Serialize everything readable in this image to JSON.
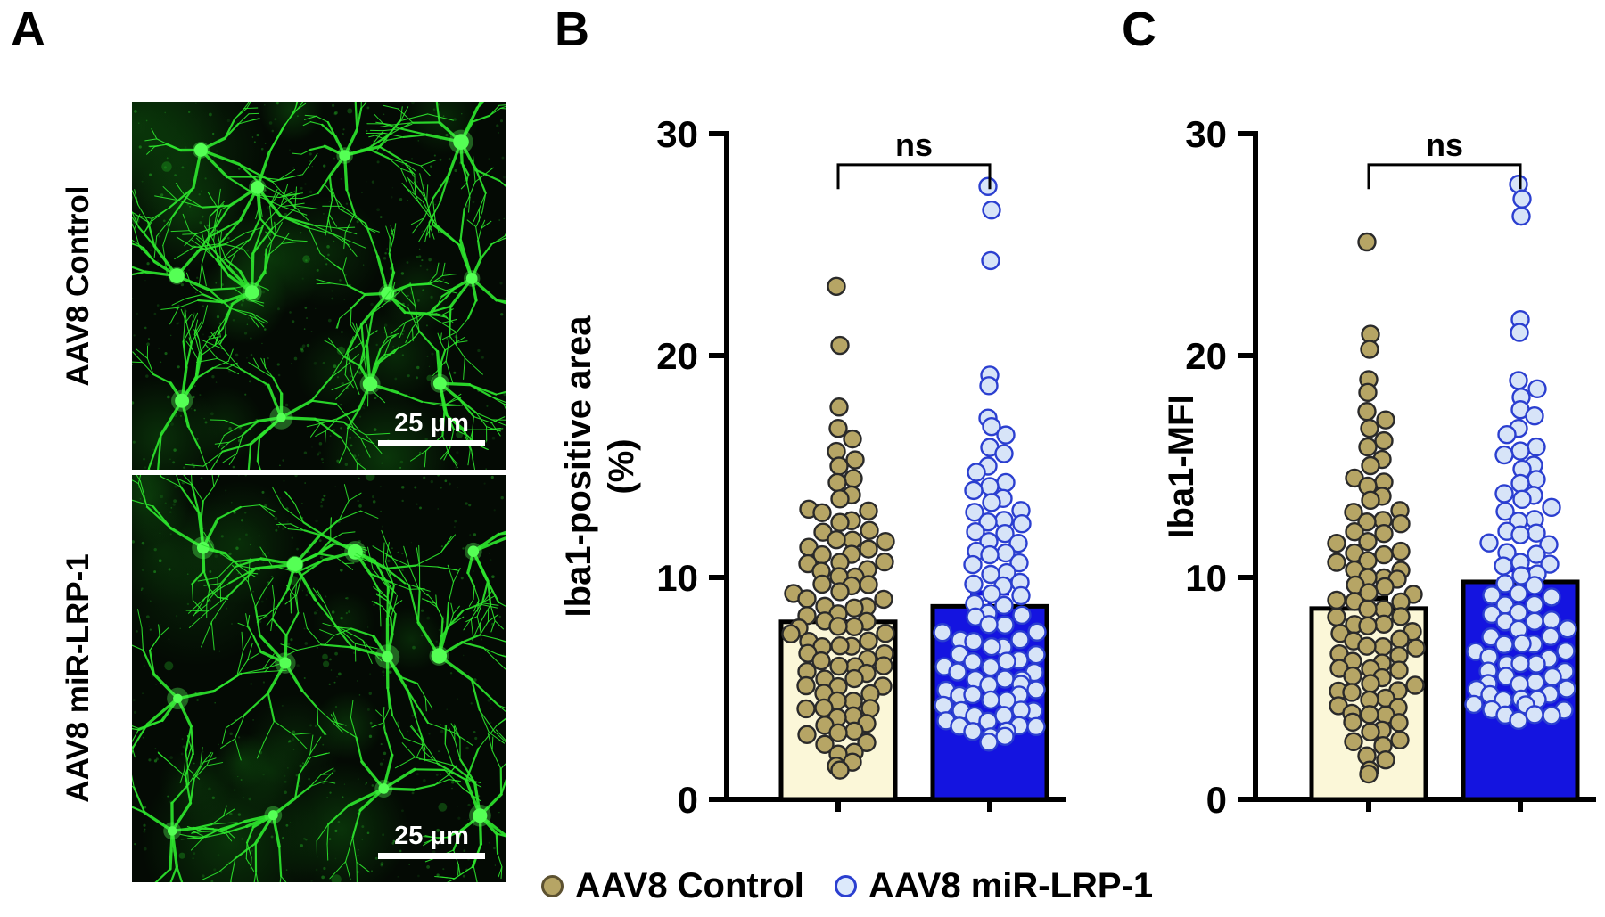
{
  "panels": {
    "a": {
      "label": "A",
      "images": [
        {
          "side_label": "AAV8 Control",
          "scale_bar_label": "25 μm"
        },
        {
          "side_label": "AAV8 miR-LRP-1",
          "scale_bar_label": "25 μm"
        }
      ],
      "micro_colors": {
        "bg": "#040a04",
        "cell": "#2de42d",
        "soma": "#55ff55",
        "haze": "#0e5a0e"
      }
    },
    "b": {
      "label": "B"
    },
    "c": {
      "label": "C"
    }
  },
  "legend": {
    "items": [
      {
        "label": "AAV8 Control",
        "marker": "filled-circle",
        "fill": "#b6a565",
        "stroke": "#5c5130"
      },
      {
        "label": "AAV8 miR-LRP-1",
        "marker": "open-circle",
        "fill": "#dce9fb",
        "stroke": "#2b3fd0"
      }
    ]
  },
  "chart_data": [
    {
      "id": "B",
      "type": "bar-scatter",
      "categories": [
        "AAV8 Control",
        "AAV8 miR-LRP-1"
      ],
      "ylabel_lines": [
        "Iba1-positive area",
        "(%)"
      ],
      "ylim": [
        0,
        30
      ],
      "yticks": [
        0,
        10,
        20,
        30
      ],
      "significance": "ns",
      "bracket_y": 28.6,
      "groups": [
        {
          "name": "AAV8 Control",
          "bar_mean": 8.0,
          "sem": 0.45,
          "bar_fill": "#fbf7d8",
          "err_color": "#000000",
          "dot_fill": "#b6a565",
          "dot_stroke": "#2a2a2a",
          "values": [
            23,
            20.5,
            17.6,
            16.8,
            16.2,
            15.8,
            15.3,
            14.9,
            14.5,
            14.2,
            13.8,
            13.5,
            13.2,
            13.0,
            12.8,
            12.6,
            12.4,
            12.2,
            12.0,
            11.8,
            11.7,
            11.5,
            11.4,
            11.2,
            11.1,
            11.0,
            10.8,
            10.7,
            10.5,
            10.4,
            10.2,
            10.1,
            10.0,
            9.8,
            9.7,
            9.5,
            9.4,
            9.2,
            9.1,
            9.0,
            8.8,
            8.7,
            8.5,
            8.4,
            8.2,
            8.1,
            8.0,
            7.9,
            7.8,
            7.6,
            7.5,
            7.4,
            7.2,
            7.1,
            7.0,
            6.9,
            6.8,
            6.6,
            6.5,
            6.4,
            6.2,
            6.1,
            6.0,
            5.9,
            5.8,
            5.6,
            5.5,
            5.4,
            5.2,
            5.1,
            5.0,
            4.8,
            4.7,
            4.5,
            4.4,
            4.2,
            4.1,
            4.0,
            3.8,
            3.6,
            3.5,
            3.3,
            3.2,
            3.0,
            2.8,
            2.6,
            2.4,
            2.2,
            2.0,
            1.8,
            1.5,
            1.2
          ]
        },
        {
          "name": "AAV8 miR-LRP-1",
          "bar_mean": 8.7,
          "sem": 0.6,
          "bar_fill": "#1414e0",
          "err_color": "#1414e0",
          "dot_fill": "#d7e4f8",
          "dot_stroke": "#2b3fd0",
          "values": [
            27.5,
            26.6,
            24.2,
            19.2,
            18.6,
            17.3,
            16.8,
            16.3,
            15.9,
            15.5,
            15.1,
            14.7,
            14.4,
            14.1,
            13.8,
            13.6,
            13.3,
            13.1,
            12.9,
            12.7,
            12.5,
            12.3,
            12.1,
            11.9,
            11.7,
            11.5,
            11.3,
            11.1,
            10.9,
            10.7,
            10.5,
            10.3,
            10.1,
            9.9,
            9.7,
            9.5,
            9.3,
            9.1,
            8.9,
            8.7,
            8.5,
            8.3,
            8.1,
            7.9,
            7.8,
            7.6,
            7.5,
            7.3,
            7.2,
            7.0,
            6.9,
            6.8,
            6.6,
            6.5,
            6.4,
            6.2,
            6.1,
            6.0,
            5.9,
            5.8,
            5.7,
            5.5,
            5.4,
            5.3,
            5.2,
            5.1,
            5.0,
            4.9,
            4.8,
            4.7,
            4.6,
            4.5,
            4.4,
            4.3,
            4.2,
            4.1,
            4.0,
            3.9,
            3.8,
            3.7,
            3.6,
            3.5,
            3.4,
            3.3,
            3.2,
            3.1,
            3.0,
            2.9,
            2.8,
            2.7
          ]
        }
      ]
    },
    {
      "id": "C",
      "type": "bar-scatter",
      "categories": [
        "AAV8 Control",
        "AAV8 miR-LRP-1"
      ],
      "ylabel_lines": [
        "Iba1-MFI"
      ],
      "ylim": [
        0,
        30
      ],
      "yticks": [
        0,
        10,
        20,
        30
      ],
      "significance": "ns",
      "bracket_y": 28.6,
      "groups": [
        {
          "name": "AAV8 Control",
          "bar_mean": 8.6,
          "sem": 0.45,
          "bar_fill": "#fbf7d8",
          "err_color": "#000000",
          "dot_fill": "#b6a565",
          "dot_stroke": "#2a2a2a",
          "values": [
            25.0,
            21.0,
            20.2,
            19.0,
            18.3,
            17.6,
            17.1,
            16.6,
            16.2,
            15.8,
            15.4,
            15.0,
            14.6,
            14.3,
            14.0,
            13.7,
            13.4,
            13.1,
            12.9,
            12.7,
            12.5,
            12.3,
            12.1,
            11.9,
            11.7,
            11.5,
            11.3,
            11.1,
            10.9,
            10.8,
            10.6,
            10.4,
            10.3,
            10.1,
            10.0,
            9.8,
            9.7,
            9.5,
            9.4,
            9.2,
            9.1,
            8.9,
            8.8,
            8.6,
            8.5,
            8.3,
            8.2,
            8.0,
            7.9,
            7.7,
            7.6,
            7.4,
            7.3,
            7.1,
            7.0,
            6.9,
            6.7,
            6.6,
            6.4,
            6.3,
            6.1,
            6.0,
            5.9,
            5.7,
            5.6,
            5.4,
            5.3,
            5.1,
            5.0,
            4.9,
            4.7,
            4.6,
            4.4,
            4.3,
            4.1,
            4.0,
            3.8,
            3.7,
            3.5,
            3.4,
            3.2,
            3.0,
            2.8,
            2.6,
            2.3,
            2.0,
            1.7,
            1.4,
            1.1
          ]
        },
        {
          "name": "AAV8 miR-LRP-1",
          "bar_mean": 9.8,
          "sem": 0.55,
          "bar_fill": "#1414e0",
          "err_color": "#1414e0",
          "dot_fill": "#d7e4f8",
          "dot_stroke": "#2b3fd0",
          "values": [
            27.6,
            27.1,
            26.2,
            21.7,
            21.0,
            19.0,
            18.5,
            18.0,
            17.6,
            17.2,
            16.8,
            16.4,
            16.0,
            15.7,
            15.4,
            15.1,
            14.8,
            14.5,
            14.2,
            13.9,
            13.7,
            13.4,
            13.2,
            12.9,
            12.7,
            12.5,
            12.2,
            12.0,
            11.8,
            11.6,
            11.4,
            11.2,
            11.0,
            10.8,
            10.6,
            10.4,
            10.2,
            10.0,
            9.8,
            9.6,
            9.4,
            9.2,
            9.0,
            8.8,
            8.7,
            8.5,
            8.3,
            8.2,
            8.0,
            7.9,
            7.7,
            7.6,
            7.4,
            7.3,
            7.1,
            7.0,
            6.9,
            6.7,
            6.6,
            6.5,
            6.3,
            6.2,
            6.1,
            6.0,
            5.8,
            5.7,
            5.6,
            5.5,
            5.4,
            5.2,
            5.1,
            5.0,
            4.9,
            4.8,
            4.7,
            4.6,
            4.5,
            4.4,
            4.3,
            4.2,
            4.1,
            4.0,
            3.9,
            3.8,
            3.7,
            3.6
          ]
        }
      ]
    }
  ]
}
